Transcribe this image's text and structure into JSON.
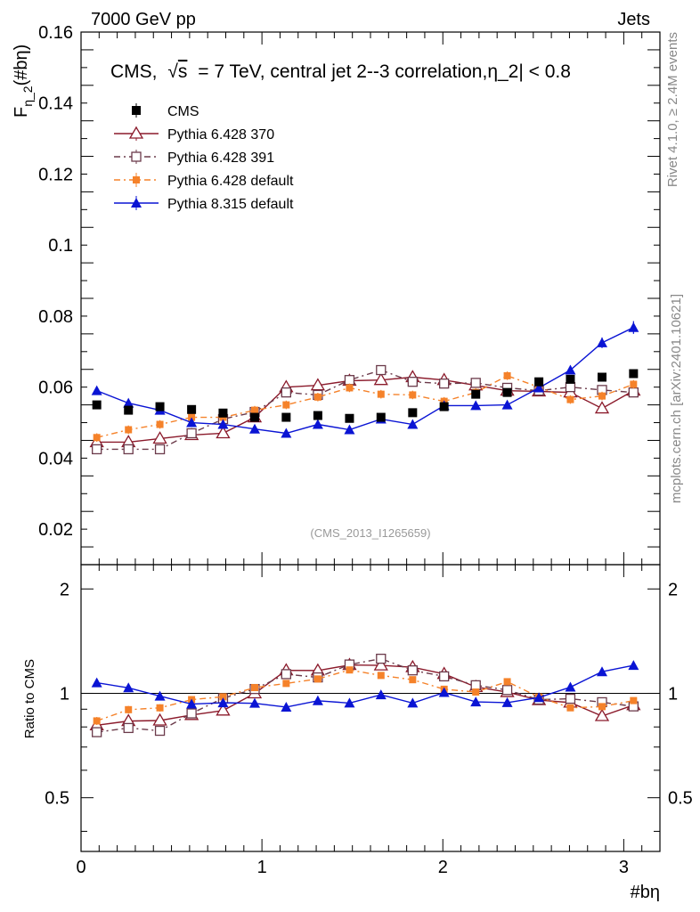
{
  "header": {
    "left": "7000 GeV pp",
    "right": "Jets",
    "side_top": "Rivet 4.1.0, ≥ 2.4M events",
    "side_bottom": "mcplots.cern.ch [arXiv:2401.10621]"
  },
  "chart_data": {
    "type": "scatter",
    "title_prefix": "CMS,",
    "title_sqrt": "√",
    "title_s": "s",
    "title_suffix": "= 7 TeV, central jet 2--3 correlation,η_2| < 0.8",
    "watermark": "(CMS_2013_I1265659)",
    "ylabel_main": "F",
    "ylabel_sub": "η_2",
    "ylabel_tail": "(#bη)",
    "ylabel_ratio": "Ratio to CMS",
    "xlabel": "#bη",
    "xlim": [
      0,
      3.2
    ],
    "ylim": [
      0.01,
      0.16
    ],
    "ratio_ylim": [
      0.35,
      2.35
    ],
    "x_ticks": [
      "0",
      "1",
      "2",
      "3"
    ],
    "y_ticks": [
      "0.02",
      "0.04",
      "0.06",
      "0.08",
      "0.1",
      "0.12",
      "0.14",
      "0.16"
    ],
    "ratio_ticks_left": [
      "0.5",
      "1",
      "2"
    ],
    "ratio_ticks_right": [
      "0.5",
      "1",
      "2"
    ],
    "x": [
      0.087,
      0.262,
      0.436,
      0.611,
      0.785,
      0.96,
      1.134,
      1.309,
      1.484,
      1.658,
      1.833,
      2.007,
      2.182,
      2.356,
      2.531,
      2.705,
      2.88,
      3.054
    ],
    "series": [
      {
        "name": "CMS",
        "color": "#000000",
        "marker": "filled-square",
        "line": "none",
        "values": [
          0.055,
          0.0535,
          0.0545,
          0.0537,
          0.0527,
          0.0515,
          0.0515,
          0.052,
          0.0512,
          0.0515,
          0.0528,
          0.0545,
          0.058,
          0.0585,
          0.0615,
          0.0622,
          0.0628,
          0.0638
        ],
        "errors": [
          0.001,
          0.001,
          0.001,
          0.001,
          0.001,
          0.001,
          0.001,
          0.001,
          0.001,
          0.001,
          0.001,
          0.001,
          0.001,
          0.001,
          0.001,
          0.001,
          0.001,
          0.001
        ]
      },
      {
        "name": "Pythia 6.428 370",
        "color": "#8b1a2b",
        "marker": "open-triangle",
        "line": "solid",
        "values": [
          0.0445,
          0.0445,
          0.0455,
          0.0465,
          0.047,
          0.0515,
          0.06,
          0.0605,
          0.0618,
          0.062,
          0.0628,
          0.062,
          0.0605,
          0.059,
          0.0588,
          0.0585,
          0.054,
          0.059
        ],
        "errors": [
          0.0012,
          0.0012,
          0.0012,
          0.0012,
          0.0012,
          0.0012,
          0.0012,
          0.0012,
          0.0012,
          0.0012,
          0.0012,
          0.0012,
          0.0012,
          0.0012,
          0.0012,
          0.0012,
          0.0012,
          0.0012
        ]
      },
      {
        "name": "Pythia 6.428 391",
        "color": "#6b3a4a",
        "marker": "open-square",
        "line": "dashdot",
        "values": [
          0.0425,
          0.0425,
          0.0425,
          0.047,
          0.051,
          0.053,
          0.0585,
          0.0578,
          0.062,
          0.0648,
          0.0615,
          0.061,
          0.0612,
          0.0598,
          0.059,
          0.06,
          0.0592,
          0.0585
        ],
        "errors": [
          0.0012,
          0.0012,
          0.0012,
          0.0012,
          0.0012,
          0.0012,
          0.0012,
          0.0012,
          0.0012,
          0.0012,
          0.0012,
          0.0012,
          0.0012,
          0.0012,
          0.0012,
          0.0012,
          0.0012,
          0.0012
        ]
      },
      {
        "name": "Pythia 6.428 default",
        "color": "#f5822a",
        "marker": "filled-square-small",
        "line": "dashdot",
        "values": [
          0.0458,
          0.048,
          0.0495,
          0.0515,
          0.0515,
          0.0535,
          0.055,
          0.0572,
          0.0598,
          0.058,
          0.0578,
          0.056,
          0.0585,
          0.0632,
          0.06,
          0.0565,
          0.0575,
          0.0608
        ],
        "errors": [
          0.0012,
          0.0012,
          0.0012,
          0.0012,
          0.0012,
          0.0012,
          0.0012,
          0.0012,
          0.0012,
          0.0012,
          0.0012,
          0.0012,
          0.0012,
          0.0012,
          0.0012,
          0.0012,
          0.0012,
          0.0012
        ]
      },
      {
        "name": "Pythia 8.315 default",
        "color": "#0a14d4",
        "marker": "filled-triangle",
        "line": "solid",
        "values": [
          0.059,
          0.0555,
          0.0535,
          0.05,
          0.0495,
          0.0482,
          0.047,
          0.0495,
          0.048,
          0.051,
          0.0495,
          0.0548,
          0.0548,
          0.055,
          0.0598,
          0.0648,
          0.0725,
          0.0768
        ],
        "errors": [
          0.0012,
          0.0012,
          0.0012,
          0.0012,
          0.0012,
          0.0012,
          0.0012,
          0.0012,
          0.0012,
          0.0012,
          0.0012,
          0.0012,
          0.0012,
          0.0012,
          0.0012,
          0.0012,
          0.0015,
          0.0018
        ]
      }
    ]
  }
}
